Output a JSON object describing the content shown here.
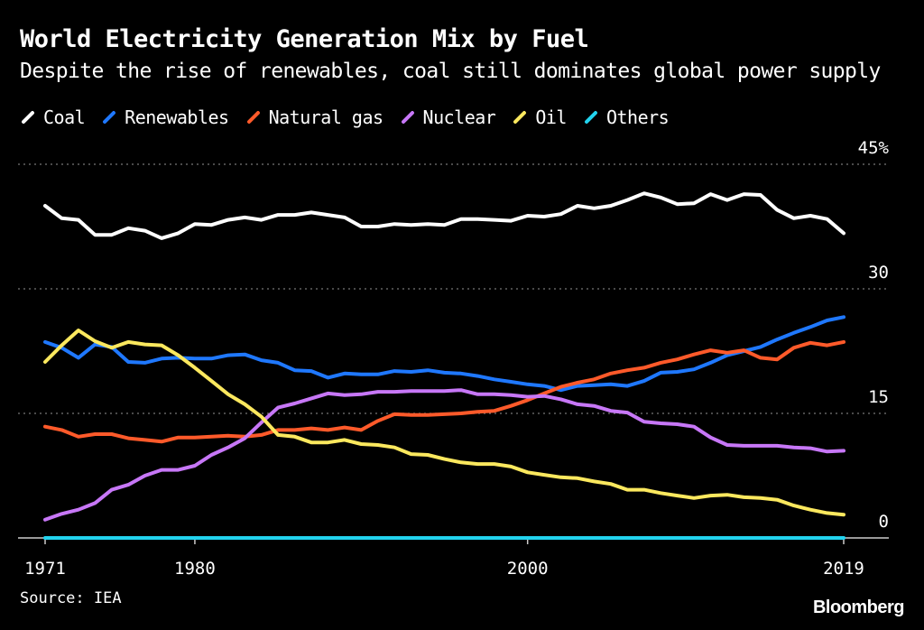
{
  "chart_data": {
    "type": "line",
    "title": "World Electricity Generation Mix by Fuel",
    "subtitle": "Despite the rise of renewables, coal still dominates global power supply",
    "ylim": [
      0,
      45
    ],
    "y_ticks": [
      "0",
      "15",
      "30",
      "45%"
    ],
    "y_tick_values": [
      0,
      15,
      30,
      45
    ],
    "x_ticks": [
      "1971",
      "1980",
      "2000",
      "2019"
    ],
    "x_tick_values": [
      1971,
      1980,
      2000,
      2019
    ],
    "grid": "horizontal dotted",
    "legend": "top-left",
    "x_start": 1971,
    "x_end": 2019,
    "series": [
      {
        "name": "Coal",
        "color": "#ffffff",
        "values": [
          40.0,
          38.5,
          38.3,
          36.5,
          36.5,
          37.3,
          37.0,
          36.1,
          36.7,
          37.8,
          37.7,
          38.3,
          38.6,
          38.3,
          38.9,
          38.9,
          39.2,
          38.9,
          38.6,
          37.5,
          37.5,
          37.8,
          37.7,
          37.8,
          37.7,
          38.4,
          38.4,
          38.3,
          38.2,
          38.8,
          38.7,
          39.0,
          40.0,
          39.7,
          40.0,
          40.7,
          41.5,
          41.0,
          40.2,
          40.3,
          41.4,
          40.7,
          41.4,
          41.3,
          39.5,
          38.5,
          38.8,
          38.4,
          36.7
        ]
      },
      {
        "name": "Renewables",
        "color": "#1f78ff",
        "values": [
          23.6,
          22.9,
          21.7,
          23.3,
          23.0,
          21.2,
          21.1,
          21.6,
          21.7,
          21.6,
          21.6,
          22.0,
          22.1,
          21.4,
          21.1,
          20.2,
          20.1,
          19.3,
          19.8,
          19.7,
          19.7,
          20.1,
          20.0,
          20.2,
          19.9,
          19.8,
          19.5,
          19.1,
          18.8,
          18.5,
          18.3,
          17.8,
          18.3,
          18.4,
          18.5,
          18.3,
          18.9,
          19.9,
          20.0,
          20.3,
          21.1,
          22.0,
          22.5,
          23.0,
          23.9,
          24.7,
          25.4,
          26.2,
          26.6
        ]
      },
      {
        "name": "Natural gas",
        "color": "#ff5a2a",
        "values": [
          13.4,
          13.0,
          12.2,
          12.5,
          12.5,
          12.0,
          11.8,
          11.6,
          12.1,
          12.1,
          12.2,
          12.3,
          12.2,
          12.4,
          13.0,
          13.0,
          13.2,
          13.0,
          13.3,
          13.0,
          14.1,
          14.9,
          14.8,
          14.8,
          14.9,
          15.0,
          15.2,
          15.3,
          15.9,
          16.6,
          17.4,
          18.2,
          18.7,
          19.1,
          19.8,
          20.2,
          20.5,
          21.1,
          21.5,
          22.1,
          22.6,
          22.3,
          22.6,
          21.7,
          21.5,
          22.9,
          23.5,
          23.2,
          23.6
        ]
      },
      {
        "name": "Nuclear",
        "color": "#c777f7",
        "values": [
          2.2,
          2.9,
          3.4,
          4.2,
          5.8,
          6.4,
          7.5,
          8.2,
          8.2,
          8.7,
          10.0,
          10.9,
          12.0,
          13.9,
          15.7,
          16.2,
          16.8,
          17.4,
          17.2,
          17.3,
          17.6,
          17.6,
          17.7,
          17.7,
          17.7,
          17.8,
          17.3,
          17.3,
          17.2,
          17.0,
          17.1,
          16.7,
          16.1,
          15.9,
          15.3,
          15.1,
          14.0,
          13.8,
          13.7,
          13.4,
          12.1,
          11.2,
          11.1,
          11.1,
          11.1,
          10.9,
          10.8,
          10.4,
          10.5
        ]
      },
      {
        "name": "Oil",
        "color": "#fbe85e",
        "values": [
          21.2,
          23.2,
          25.0,
          23.7,
          22.9,
          23.6,
          23.3,
          23.2,
          22.0,
          20.5,
          18.9,
          17.3,
          16.1,
          14.6,
          12.4,
          12.2,
          11.5,
          11.5,
          11.8,
          11.3,
          11.2,
          10.9,
          10.1,
          10.0,
          9.5,
          9.1,
          8.9,
          8.9,
          8.6,
          7.9,
          7.6,
          7.3,
          7.2,
          6.8,
          6.5,
          5.8,
          5.8,
          5.4,
          5.1,
          4.8,
          5.1,
          5.2,
          4.9,
          4.8,
          4.6,
          3.9,
          3.4,
          3.0,
          2.8
        ]
      },
      {
        "name": "Others",
        "color": "#22d3ee",
        "values": [
          0,
          0,
          0,
          0,
          0,
          0,
          0,
          0,
          0,
          0,
          0,
          0,
          0,
          0,
          0,
          0,
          0,
          0,
          0,
          0,
          0,
          0,
          0,
          0,
          0,
          0,
          0,
          0,
          0,
          0,
          0,
          0,
          0,
          0,
          0,
          0,
          0,
          0,
          0,
          0,
          0,
          0,
          0,
          0,
          0,
          0,
          0,
          0,
          0
        ]
      }
    ]
  },
  "footer": {
    "source": "Source: IEA",
    "logo": "Bloomberg"
  }
}
